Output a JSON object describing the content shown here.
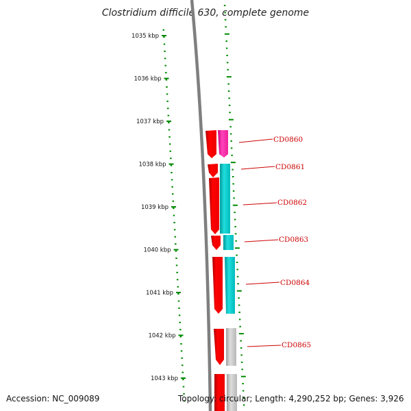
{
  "title": "Clostridium difficile 630, complete genome",
  "accession": "Accession: NC_009089",
  "topology": "Topology: circular; Length: 4,290,252 bp; Genes: 3,926",
  "colors": {
    "backbone": "#7f7f7f",
    "tick": "#008800",
    "cds": "#ff0000",
    "cds_dark": "#bb0000",
    "label": "#cc0000"
  },
  "ruler": {
    "unit": "kbp",
    "labels": [
      "1035 kbp",
      "1036 kbp",
      "1037 kbp",
      "1038 kbp",
      "1039 kbp",
      "1040 kbp",
      "1041 kbp",
      "1042 kbp",
      "1043 kbp"
    ]
  },
  "genes": [
    {
      "name": "CD0860",
      "feature_color": "#ff33aa"
    },
    {
      "name": "CD0861",
      "feature_color": "#00cccc"
    },
    {
      "name": "CD0862",
      "feature_color": "#00cccc"
    },
    {
      "name": "CD0863",
      "feature_color": "#00cccc"
    },
    {
      "name": "CD0864",
      "feature_color": "#00cccc"
    },
    {
      "name": "CD0865",
      "feature_color": "#c0c0c0"
    }
  ]
}
